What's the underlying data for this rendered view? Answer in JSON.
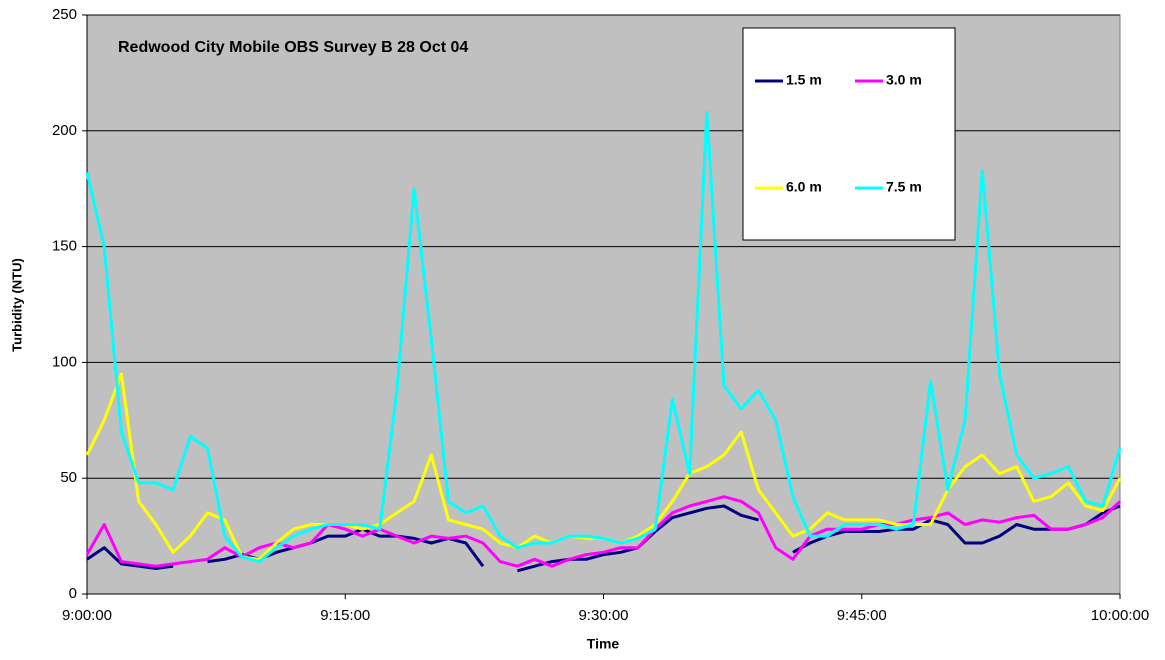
{
  "chart_data": {
    "type": "line",
    "title": "Redwood City Mobile OBS Survey B 28 Oct 04",
    "x_label": "Time",
    "y_label": "Turbidity (NTU)",
    "x": [
      "9:00:00",
      "9:01:00",
      "9:02:00",
      "9:03:00",
      "9:04:00",
      "9:05:00",
      "9:06:00",
      "9:07:00",
      "9:08:00",
      "9:09:00",
      "9:10:00",
      "9:11:00",
      "9:12:00",
      "9:13:00",
      "9:14:00",
      "9:15:00",
      "9:16:00",
      "9:17:00",
      "9:18:00",
      "9:19:00",
      "9:20:00",
      "9:21:00",
      "9:22:00",
      "9:23:00",
      "9:24:00",
      "9:25:00",
      "9:26:00",
      "9:27:00",
      "9:28:00",
      "9:29:00",
      "9:30:00",
      "9:31:00",
      "9:32:00",
      "9:33:00",
      "9:34:00",
      "9:35:00",
      "9:36:00",
      "9:37:00",
      "9:38:00",
      "9:39:00",
      "9:40:00",
      "9:41:00",
      "9:42:00",
      "9:43:00",
      "9:44:00",
      "9:45:00",
      "9:46:00",
      "9:47:00",
      "9:48:00",
      "9:49:00",
      "9:50:00",
      "9:51:00",
      "9:52:00",
      "9:53:00",
      "9:54:00",
      "9:55:00",
      "9:56:00",
      "9:57:00",
      "9:58:00",
      "9:59:00",
      "10:00:00"
    ],
    "xlim": [
      "9:00:00",
      "10:00:00"
    ],
    "xticks": [
      "9:00:00",
      "9:15:00",
      "9:30:00",
      "9:45:00",
      "10:00:00"
    ],
    "ylim": [
      0,
      250
    ],
    "yticks": [
      0,
      50,
      100,
      150,
      200,
      250
    ],
    "grid": true,
    "background": "#c0c0c0",
    "series": [
      {
        "name": "1.5 m",
        "color": "#000080",
        "values": [
          15,
          20,
          13,
          12,
          11,
          12,
          null,
          14,
          15,
          17,
          15,
          18,
          20,
          22,
          25,
          25,
          28,
          25,
          25,
          24,
          22,
          24,
          22,
          12,
          null,
          10,
          12,
          14,
          15,
          15,
          17,
          18,
          20,
          27,
          33,
          35,
          37,
          38,
          34,
          32,
          null,
          18,
          22,
          25,
          27,
          27,
          27,
          28,
          28,
          32,
          30,
          22,
          22,
          25,
          30,
          28,
          28,
          28,
          30,
          35,
          38
        ]
      },
      {
        "name": "3.0 m",
        "color": "#ff00ff",
        "values": [
          17,
          30,
          14,
          13,
          12,
          13,
          14,
          15,
          20,
          16,
          20,
          22,
          20,
          22,
          30,
          28,
          25,
          28,
          25,
          22,
          25,
          24,
          25,
          22,
          14,
          12,
          15,
          12,
          15,
          17,
          18,
          20,
          20,
          28,
          35,
          38,
          40,
          42,
          40,
          35,
          20,
          15,
          25,
          28,
          28,
          28,
          30,
          30,
          32,
          33,
          35,
          30,
          32,
          31,
          33,
          34,
          28,
          28,
          30,
          33,
          40
        ]
      },
      {
        "name": "6.0 m",
        "color": "#ffff00",
        "values": [
          60,
          75,
          95,
          40,
          30,
          18,
          25,
          35,
          32,
          16,
          15,
          22,
          28,
          30,
          30,
          30,
          28,
          30,
          35,
          40,
          60,
          32,
          30,
          28,
          22,
          20,
          25,
          22,
          25,
          24,
          24,
          22,
          25,
          30,
          40,
          52,
          55,
          60,
          70,
          45,
          35,
          25,
          28,
          35,
          32,
          32,
          32,
          30,
          30,
          30,
          45,
          55,
          60,
          52,
          55,
          40,
          42,
          48,
          38,
          36,
          50
        ]
      },
      {
        "name": "7.5 m",
        "color": "#00ffff",
        "values": [
          182,
          150,
          70,
          48,
          48,
          45,
          68,
          63,
          25,
          16,
          14,
          20,
          25,
          28,
          30,
          30,
          30,
          28,
          88,
          175,
          110,
          40,
          35,
          38,
          25,
          20,
          22,
          22,
          25,
          25,
          24,
          22,
          24,
          28,
          84,
          52,
          208,
          90,
          80,
          88,
          75,
          42,
          25,
          25,
          30,
          30,
          30,
          28,
          30,
          92,
          45,
          75,
          183,
          95,
          60,
          50,
          52,
          55,
          40,
          38,
          63
        ]
      }
    ]
  }
}
